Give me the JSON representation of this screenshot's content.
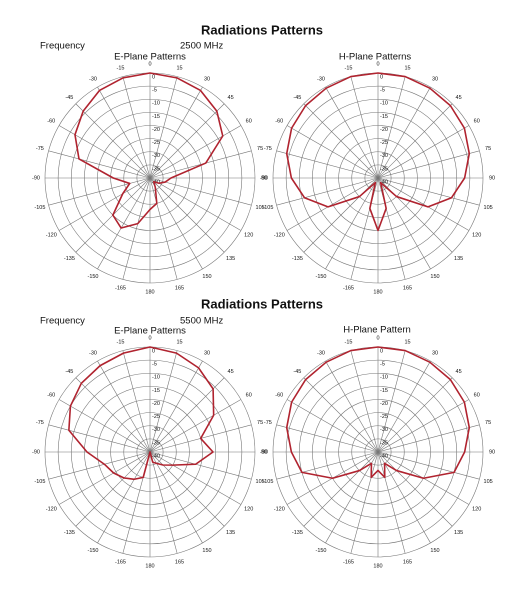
{
  "sections": [
    {
      "title": "Radiations Patterns",
      "frequency_label": "Frequency",
      "frequency": "2500 MHz"
    },
    {
      "title": "Radiations Patterns",
      "frequency_label": "Frequency",
      "frequency": "5500 MHz"
    }
  ],
  "chart_data": [
    {
      "type": "polar",
      "title": "E-Plane Patterns",
      "color": "#b0232f",
      "x": [
        -165,
        -150,
        -135,
        -120,
        -105,
        -90,
        -75,
        -60,
        -45,
        -30,
        -15,
        0,
        15,
        30,
        45,
        60,
        75,
        90,
        105,
        120,
        135,
        150,
        165,
        180
      ],
      "values": [
        -22,
        -18,
        -20,
        -28,
        -32,
        -26,
        -12,
        -7,
        -4,
        -1.5,
        -0.5,
        0,
        -0.5,
        -1.5,
        -4,
        -8,
        -18,
        -32,
        -34,
        -36,
        -38,
        -36,
        -30,
        -28
      ],
      "rlim": [
        -40,
        0
      ],
      "rticks": [
        0,
        -5,
        -10,
        -15,
        -20,
        -25,
        -30,
        -35,
        -40
      ],
      "thetaticks": [
        0,
        15,
        30,
        45,
        60,
        75,
        90,
        105,
        120,
        135,
        150,
        165,
        180,
        -165,
        -150,
        -135,
        -120,
        -105,
        -90,
        -75,
        -60,
        -45,
        -30,
        -15
      ]
    },
    {
      "type": "polar",
      "title": "H-Plane Patterns",
      "color": "#b0232f",
      "x": [
        -165,
        -150,
        -135,
        -120,
        -105,
        -90,
        -75,
        -60,
        -45,
        -30,
        -15,
        0,
        15,
        30,
        45,
        60,
        75,
        90,
        105,
        120,
        135,
        150,
        165,
        180
      ],
      "values": [
        -28,
        -38,
        -30,
        -18,
        -11,
        -7,
        -4,
        -2,
        -1,
        -0.5,
        0,
        0,
        0,
        -0.5,
        -1,
        -2,
        -4,
        -7,
        -11,
        -18,
        -30,
        -38,
        -28,
        -20
      ],
      "rlim": [
        -40,
        0
      ],
      "rticks": [
        0,
        -5,
        -10,
        -15,
        -20,
        -25,
        -30,
        -35,
        -40
      ],
      "thetaticks": [
        0,
        15,
        30,
        45,
        60,
        75,
        90,
        105,
        120,
        135,
        150,
        165,
        180,
        -165,
        -150,
        -135,
        -120,
        -105,
        -90,
        -75,
        -60,
        -45,
        -30,
        -15
      ]
    },
    {
      "type": "polar",
      "title": "E-Plane Patterns",
      "color": "#b0232f",
      "x": [
        -165,
        -150,
        -135,
        -120,
        -105,
        -90,
        -75,
        -60,
        -45,
        -30,
        -15,
        0,
        15,
        30,
        45,
        60,
        75,
        90,
        105,
        120,
        135,
        150,
        165,
        180
      ],
      "values": [
        -30,
        -28,
        -26,
        -24,
        -22,
        -16,
        -8,
        -5,
        -3,
        -2,
        -1,
        0,
        -1,
        -3,
        -6,
        -12,
        -20,
        -16,
        -22,
        -30,
        -33,
        -35,
        -36,
        -40
      ],
      "rlim": [
        -40,
        0
      ],
      "rticks": [
        0,
        -5,
        -10,
        -15,
        -20,
        -25,
        -30,
        -35,
        -40
      ],
      "thetaticks": [
        0,
        15,
        30,
        45,
        60,
        75,
        90,
        105,
        120,
        135,
        150,
        165,
        180,
        -165,
        -150,
        -135,
        -120,
        -105,
        -90,
        -75,
        -60,
        -45,
        -30,
        -15
      ]
    },
    {
      "type": "polar",
      "title": "H-Plane Pattern",
      "color": "#b0232f",
      "x": [
        -165,
        -150,
        -135,
        -120,
        -105,
        -90,
        -75,
        -60,
        -45,
        -30,
        -15,
        0,
        15,
        30,
        45,
        60,
        75,
        90,
        105,
        120,
        135,
        150,
        165,
        180
      ],
      "values": [
        -30,
        -35,
        -30,
        -20,
        -10,
        -7,
        -4,
        -2,
        -1,
        -0.5,
        0,
        0,
        0,
        -0.5,
        -1,
        -2,
        -4,
        -7,
        -10,
        -20,
        -30,
        -35,
        -30,
        -33
      ],
      "rlim": [
        -40,
        0
      ],
      "rticks": [
        0,
        -5,
        -10,
        -15,
        -20,
        -25,
        -30,
        -35,
        -40
      ],
      "thetaticks": [
        0,
        15,
        30,
        45,
        60,
        75,
        90,
        105,
        120,
        135,
        150,
        165,
        180,
        -165,
        -150,
        -135,
        -120,
        -105,
        -90,
        -75,
        -60,
        -45,
        -30,
        -15
      ]
    }
  ]
}
